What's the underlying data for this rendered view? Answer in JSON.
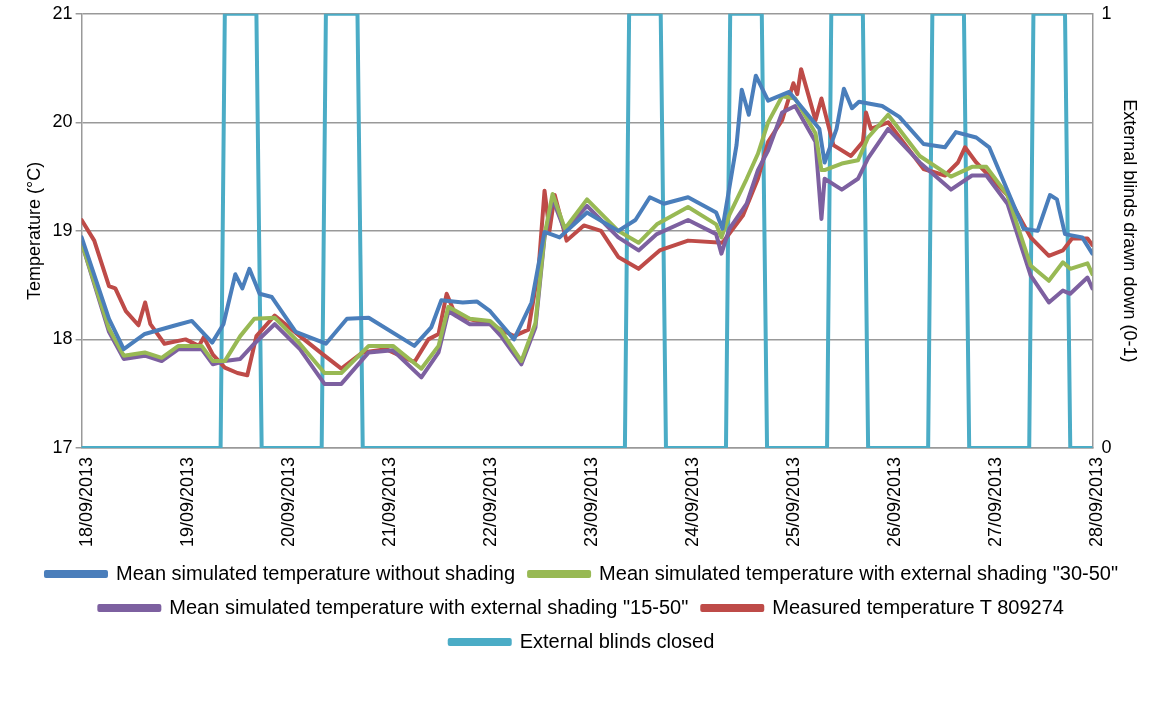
{
  "chart_data": {
    "type": "line",
    "ylabel": "Temperature (°C)",
    "y2label": "External blinds drawn down (0-1)",
    "xlim": [
      "2013-09-18T00:00",
      "2013-09-28T00:00"
    ],
    "xticks": [
      {
        "value": "2013-09-18T00:00",
        "label": "18/09/2013"
      },
      {
        "value": "2013-09-19T00:00",
        "label": "19/09/2013"
      },
      {
        "value": "2013-09-20T00:00",
        "label": "20/09/2013"
      },
      {
        "value": "2013-09-21T00:00",
        "label": "21/09/2013"
      },
      {
        "value": "2013-09-22T00:00",
        "label": "22/09/2013"
      },
      {
        "value": "2013-09-23T00:00",
        "label": "23/09/2013"
      },
      {
        "value": "2013-09-24T00:00",
        "label": "24/09/2013"
      },
      {
        "value": "2013-09-25T00:00",
        "label": "25/09/2013"
      },
      {
        "value": "2013-09-26T00:00",
        "label": "26/09/2013"
      },
      {
        "value": "2013-09-27T00:00",
        "label": "27/09/2013"
      },
      {
        "value": "2013-09-28T00:00",
        "label": "28/09/2013"
      }
    ],
    "ylim": [
      17,
      21
    ],
    "yticks": [
      17,
      18,
      19,
      20,
      21
    ],
    "y2lim": [
      0,
      1
    ],
    "y2ticks": [
      0,
      1
    ],
    "grid": "y",
    "legend": "bottom",
    "marker": "none",
    "line_style": "solid",
    "series": [
      {
        "name": "Mean simulated temperature without shading",
        "color": "#4a7ebb",
        "x": [
          "2013-09-18T00:00",
          "2013-09-18T06:30",
          "2013-09-18T10:00",
          "2013-09-18T15:00",
          "2013-09-18T22:20",
          "2013-09-19T02:10",
          "2013-09-19T07:00",
          "2013-09-19T09:40",
          "2013-09-19T12:30",
          "2013-09-19T14:10",
          "2013-09-19T15:50",
          "2013-09-19T18:15",
          "2013-09-19T21:10",
          "2013-09-20T02:50",
          "2013-09-20T10:00",
          "2013-09-20T15:00",
          "2013-09-20T20:10",
          "2013-09-21T07:00",
          "2013-09-21T11:00",
          "2013-09-21T13:25",
          "2013-09-21T18:30",
          "2013-09-21T21:50",
          "2013-09-22T01:00",
          "2013-09-22T06:40",
          "2013-09-22T10:50",
          "2013-09-22T13:55",
          "2013-09-22T17:30",
          "2013-09-23T00:00",
          "2013-09-23T07:25",
          "2013-09-23T11:30",
          "2013-09-23T14:55",
          "2013-09-23T18:15",
          "2013-09-24T00:00",
          "2013-09-24T06:40",
          "2013-09-24T08:10",
          "2013-09-24T11:30",
          "2013-09-24T12:45",
          "2013-09-24T14:25",
          "2013-09-24T16:05",
          "2013-09-24T19:00",
          "2013-09-25T00:00",
          "2013-09-25T07:10",
          "2013-09-25T08:25",
          "2013-09-25T11:15",
          "2013-09-25T13:00",
          "2013-09-25T14:55",
          "2013-09-25T16:35",
          "2013-09-25T22:05",
          "2013-09-26T02:10",
          "2013-09-26T07:55",
          "2013-09-26T13:00",
          "2013-09-26T15:35",
          "2013-09-26T20:25",
          "2013-09-26T23:30",
          "2013-09-27T07:40",
          "2013-09-27T11:00",
          "2013-09-27T13:55",
          "2013-09-27T15:35",
          "2013-09-27T17:30",
          "2013-09-27T21:35",
          "2013-09-28T00:00"
        ],
        "values": [
          18.94,
          18.19,
          17.91,
          18.05,
          18.13,
          18.17,
          17.97,
          18.14,
          18.6,
          18.47,
          18.65,
          18.42,
          18.39,
          18.07,
          17.96,
          18.19,
          18.2,
          17.94,
          18.11,
          18.36,
          18.34,
          18.35,
          18.26,
          18.0,
          18.34,
          18.99,
          18.94,
          19.17,
          19.0,
          19.1,
          19.31,
          19.25,
          19.31,
          19.17,
          19.02,
          19.79,
          20.3,
          20.07,
          20.43,
          20.2,
          20.28,
          19.94,
          19.63,
          19.94,
          20.31,
          20.13,
          20.19,
          20.15,
          20.05,
          19.8,
          19.77,
          19.91,
          19.86,
          19.77,
          19.02,
          19.0,
          19.33,
          19.29,
          18.97,
          18.94,
          18.79
        ]
      },
      {
        "name": "Mean simulated temperature with external shading \"30-50\"",
        "color": "#98b954",
        "x": [
          "2013-09-18T00:00",
          "2013-09-18T06:30",
          "2013-09-18T10:00",
          "2013-09-18T15:00",
          "2013-09-18T19:00",
          "2013-09-18T23:00",
          "2013-09-19T04:30",
          "2013-09-19T07:10",
          "2013-09-19T10:00",
          "2013-09-19T13:40",
          "2013-09-19T17:00",
          "2013-09-19T21:50",
          "2013-09-20T03:50",
          "2013-09-20T09:40",
          "2013-09-20T13:40",
          "2013-09-20T20:10",
          "2013-09-21T01:55",
          "2013-09-21T08:40",
          "2013-09-21T12:45",
          "2013-09-21T15:05",
          "2013-09-21T20:10",
          "2013-09-22T01:00",
          "2013-09-22T03:35",
          "2013-09-22T08:25",
          "2013-09-22T11:45",
          "2013-09-22T13:55",
          "2013-09-22T15:50",
          "2013-09-22T18:45",
          "2013-09-23T00:00",
          "2013-09-23T07:25",
          "2013-09-23T12:15",
          "2013-09-23T16:35",
          "2013-09-24T00:00",
          "2013-09-24T06:40",
          "2013-09-24T07:55",
          "2013-09-24T09:50",
          "2013-09-24T13:55",
          "2013-09-24T16:35",
          "2013-09-24T19:00",
          "2013-09-24T22:20",
          "2013-09-25T01:25",
          "2013-09-25T06:15",
          "2013-09-25T07:40",
          "2013-09-25T08:25",
          "2013-09-25T12:30",
          "2013-09-25T16:20",
          "2013-09-25T18:45",
          "2013-09-25T23:30",
          "2013-09-26T07:00",
          "2013-09-26T14:25",
          "2013-09-26T19:25",
          "2013-09-26T22:50",
          "2013-09-27T03:50",
          "2013-09-27T09:20",
          "2013-09-27T13:40",
          "2013-09-27T17:00",
          "2013-09-27T18:45",
          "2013-09-27T22:50",
          "2013-09-28T00:00"
        ],
        "values": [
          18.89,
          18.1,
          17.85,
          17.88,
          17.83,
          17.94,
          17.94,
          17.8,
          17.8,
          18.03,
          18.19,
          18.2,
          17.96,
          17.69,
          17.69,
          17.94,
          17.94,
          17.73,
          17.94,
          18.3,
          18.19,
          18.17,
          18.08,
          17.8,
          18.15,
          18.96,
          19.34,
          19.02,
          19.29,
          19.0,
          18.89,
          19.06,
          19.22,
          19.06,
          18.94,
          19.15,
          19.48,
          19.71,
          20.0,
          20.24,
          20.22,
          19.9,
          19.56,
          19.56,
          19.62,
          19.65,
          19.86,
          20.07,
          19.69,
          19.5,
          19.59,
          19.59,
          19.33,
          18.68,
          18.54,
          18.71,
          18.65,
          18.7,
          18.6
        ]
      },
      {
        "name": "Mean simulated temperature with external shading \"15-50\"",
        "color": "#7d60a0",
        "x": [
          "2013-09-18T00:00",
          "2013-09-18T06:30",
          "2013-09-18T10:00",
          "2013-09-18T15:00",
          "2013-09-18T19:00",
          "2013-09-18T23:00",
          "2013-09-19T04:30",
          "2013-09-19T07:10",
          "2013-09-19T10:00",
          "2013-09-19T13:40",
          "2013-09-19T17:00",
          "2013-09-19T21:50",
          "2013-09-20T03:50",
          "2013-09-20T09:40",
          "2013-09-20T13:40",
          "2013-09-20T20:10",
          "2013-09-21T01:55",
          "2013-09-21T08:40",
          "2013-09-21T12:45",
          "2013-09-21T15:05",
          "2013-09-21T20:10",
          "2013-09-22T01:00",
          "2013-09-22T03:35",
          "2013-09-22T08:25",
          "2013-09-22T11:45",
          "2013-09-22T13:55",
          "2013-09-22T15:50",
          "2013-09-22T18:45",
          "2013-09-23T00:00",
          "2013-09-23T07:25",
          "2013-09-23T12:15",
          "2013-09-23T16:35",
          "2013-09-24T00:00",
          "2013-09-24T06:40",
          "2013-09-24T07:55",
          "2013-09-24T09:50",
          "2013-09-24T13:55",
          "2013-09-24T16:35",
          "2013-09-24T19:00",
          "2013-09-24T22:20",
          "2013-09-25T01:25",
          "2013-09-25T06:15",
          "2013-09-25T07:40",
          "2013-09-25T08:25",
          "2013-09-25T12:30",
          "2013-09-25T16:20",
          "2013-09-25T18:45",
          "2013-09-25T23:30",
          "2013-09-26T07:00",
          "2013-09-26T14:25",
          "2013-09-26T19:25",
          "2013-09-26T22:50",
          "2013-09-27T03:50",
          "2013-09-27T09:20",
          "2013-09-27T13:40",
          "2013-09-27T17:00",
          "2013-09-27T18:45",
          "2013-09-27T22:50",
          "2013-09-28T00:00"
        ],
        "values": [
          18.89,
          18.07,
          17.82,
          17.85,
          17.8,
          17.91,
          17.91,
          17.77,
          17.8,
          17.82,
          17.96,
          18.14,
          17.91,
          17.59,
          17.59,
          17.88,
          17.9,
          17.65,
          17.88,
          18.26,
          18.14,
          18.14,
          18.03,
          17.77,
          18.11,
          18.94,
          19.29,
          19.0,
          19.23,
          18.94,
          18.82,
          18.97,
          19.1,
          18.97,
          18.79,
          19.02,
          19.25,
          19.56,
          19.74,
          20.09,
          20.15,
          19.82,
          19.11,
          19.48,
          19.38,
          19.48,
          19.67,
          19.94,
          19.63,
          19.38,
          19.51,
          19.51,
          19.25,
          18.59,
          18.34,
          18.45,
          18.42,
          18.57,
          18.47
        ]
      },
      {
        "name": "Measured temperature T 809274",
        "color": "#be4b48",
        "x": [
          "2013-09-18T00:00",
          "2013-09-18T03:00",
          "2013-09-18T06:30",
          "2013-09-18T08:00",
          "2013-09-18T10:30",
          "2013-09-18T13:30",
          "2013-09-18T15:05",
          "2013-09-18T16:20",
          "2013-09-18T19:40",
          "2013-09-19T00:40",
          "2013-09-19T03:50",
          "2013-09-19T05:00",
          "2013-09-19T07:10",
          "2013-09-19T10:00",
          "2013-09-19T13:00",
          "2013-09-19T15:20",
          "2013-09-19T17:30",
          "2013-09-19T21:50",
          "2013-09-20T03:50",
          "2013-09-20T09:40",
          "2013-09-20T13:40",
          "2013-09-20T18:45",
          "2013-09-21T00:15",
          "2013-09-21T07:00",
          "2013-09-21T10:20",
          "2013-09-21T12:45",
          "2013-09-21T14:40",
          "2013-09-21T16:50",
          "2013-09-22T01:00",
          "2013-09-22T06:40",
          "2013-09-22T10:05",
          "2013-09-22T12:30",
          "2013-09-22T13:55",
          "2013-09-22T15:05",
          "2013-09-22T16:20",
          "2013-09-22T19:10",
          "2013-09-22T23:15",
          "2013-09-23T03:20",
          "2013-09-23T07:25",
          "2013-09-23T12:15",
          "2013-09-23T17:15",
          "2013-09-24T00:00",
          "2013-09-24T08:10",
          "2013-09-24T13:00",
          "2013-09-24T16:35",
          "2013-09-24T19:00",
          "2013-09-24T22:20",
          "2013-09-25T01:00",
          "2013-09-25T01:55",
          "2013-09-25T02:50",
          "2013-09-25T06:15",
          "2013-09-25T07:40",
          "2013-09-25T10:30",
          "2013-09-25T14:40",
          "2013-09-25T17:30",
          "2013-09-25T18:15",
          "2013-09-25T19:25",
          "2013-09-25T23:30",
          "2013-09-26T07:55",
          "2013-09-26T13:00",
          "2013-09-26T16:05",
          "2013-09-26T17:45",
          "2013-09-26T20:25",
          "2013-09-27T03:50",
          "2013-09-27T09:20",
          "2013-09-27T13:40",
          "2013-09-27T17:00",
          "2013-09-27T19:10",
          "2013-09-27T22:50",
          "2013-09-28T00:00"
        ],
        "values": [
          19.1,
          18.91,
          18.49,
          18.47,
          18.26,
          18.13,
          18.34,
          18.14,
          17.96,
          18.0,
          17.94,
          18.02,
          17.86,
          17.74,
          17.69,
          17.67,
          18.03,
          18.22,
          18.03,
          17.85,
          17.73,
          17.88,
          17.91,
          17.79,
          18.0,
          18.05,
          18.42,
          18.22,
          18.14,
          18.03,
          18.09,
          18.65,
          19.37,
          19.0,
          19.33,
          18.91,
          19.05,
          19.0,
          18.76,
          18.65,
          18.82,
          18.91,
          18.89,
          19.14,
          19.48,
          19.82,
          20.02,
          20.36,
          20.26,
          20.49,
          20.02,
          20.22,
          19.79,
          19.69,
          19.82,
          20.09,
          19.94,
          20.0,
          19.57,
          19.51,
          19.63,
          19.77,
          19.63,
          19.33,
          18.94,
          18.77,
          18.82,
          18.93,
          18.93,
          18.87
        ]
      },
      {
        "name": "External blinds closed",
        "color": "#4bacc6",
        "axis": "y2",
        "x": [
          "2013-09-18T00:00",
          "2013-09-19T09:00",
          "2013-09-19T10:00",
          "2013-09-19T17:30",
          "2013-09-19T18:45",
          "2013-09-20T09:00",
          "2013-09-20T10:00",
          "2013-09-20T17:30",
          "2013-09-20T18:45",
          "2013-09-23T09:00",
          "2013-09-23T10:00",
          "2013-09-23T17:30",
          "2013-09-23T18:45",
          "2013-09-24T09:00",
          "2013-09-24T10:00",
          "2013-09-24T17:30",
          "2013-09-24T18:45",
          "2013-09-25T09:00",
          "2013-09-25T10:00",
          "2013-09-25T17:30",
          "2013-09-25T18:45",
          "2013-09-26T09:00",
          "2013-09-26T10:00",
          "2013-09-26T17:30",
          "2013-09-26T18:45",
          "2013-09-27T09:00",
          "2013-09-27T10:00",
          "2013-09-27T17:30",
          "2013-09-27T18:45",
          "2013-09-28T00:00"
        ],
        "values": [
          0,
          0,
          1,
          1,
          0,
          0,
          1,
          1,
          0,
          0,
          1,
          1,
          0,
          0,
          1,
          1,
          0,
          0,
          1,
          1,
          0,
          0,
          1,
          1,
          0,
          0,
          1,
          1,
          0,
          0
        ]
      }
    ]
  }
}
